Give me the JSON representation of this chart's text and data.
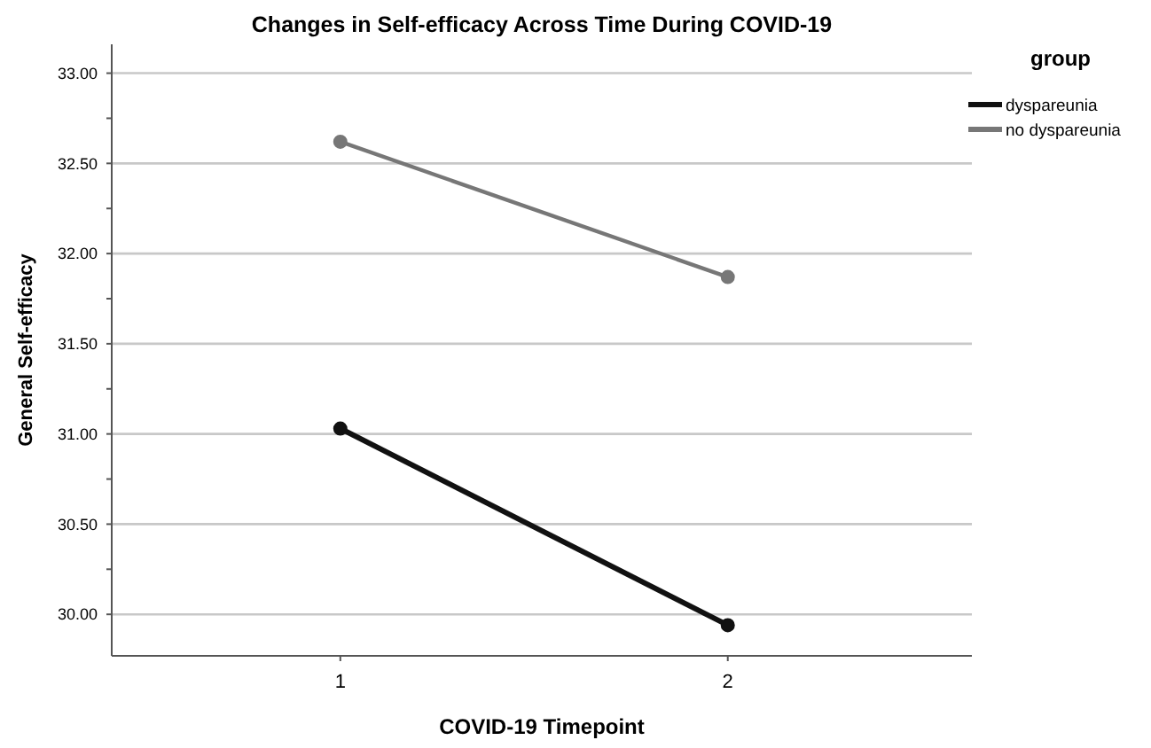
{
  "chart_data": {
    "type": "line",
    "title": "Changes in Self-efficacy Across Time During COVID-19",
    "xlabel": "COVID-19 Timepoint",
    "ylabel": "General Self-efficacy",
    "legend_title": "group",
    "x": [
      1,
      2
    ],
    "xlim": [
      0.41,
      2.63
    ],
    "xticks": [
      1,
      2
    ],
    "series": [
      {
        "name": "dyspareunia",
        "color": "#111111",
        "values": [
          31.03,
          29.94
        ]
      },
      {
        "name": "no dyspareunia",
        "color": "#777777",
        "values": [
          32.62,
          31.87
        ]
      }
    ],
    "ylim": [
      29.77,
      33.16
    ],
    "yticks": [
      {
        "value": 30,
        "label": "30.00"
      },
      {
        "value": 30.25,
        "label": null
      },
      {
        "value": 30.5,
        "label": "30.50"
      },
      {
        "value": 30.75,
        "label": null
      },
      {
        "value": 31,
        "label": "31.00"
      },
      {
        "value": 31.25,
        "label": null
      },
      {
        "value": 31.5,
        "label": "31.50"
      },
      {
        "value": 31.75,
        "label": null
      },
      {
        "value": 32,
        "label": "32.00"
      },
      {
        "value": 32.25,
        "label": null
      },
      {
        "value": 32.5,
        "label": "32.50"
      },
      {
        "value": 32.75,
        "label": null
      },
      {
        "value": 33,
        "label": "33.00"
      }
    ],
    "grid": "y",
    "legend": "top right",
    "marker": "circle",
    "line_style": "solid"
  }
}
